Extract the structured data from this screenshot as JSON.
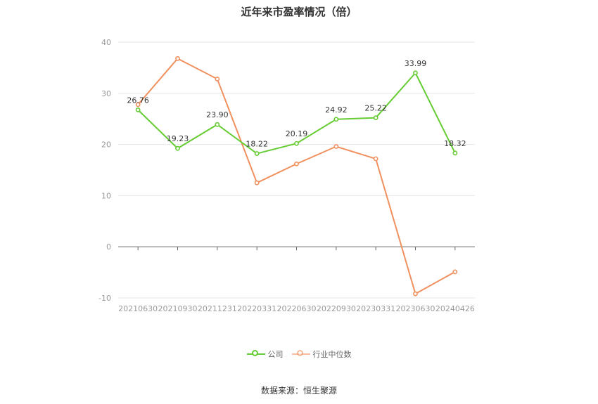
{
  "title": "近年来市盈率情况（倍）",
  "source": "数据来源：恒生聚源",
  "chart_data": {
    "type": "line",
    "categories": [
      "20210630",
      "20210930",
      "20211231",
      "20220331",
      "20220630",
      "20220930",
      "20230331",
      "20230630",
      "20240426"
    ],
    "ylim": [
      -10,
      40
    ],
    "yticks": [
      -10,
      0,
      10,
      20,
      30,
      40
    ],
    "grid": true,
    "legend_position": "bottom",
    "series": [
      {
        "name": "公司",
        "color": "#66cc33",
        "values": [
          26.76,
          19.23,
          23.9,
          18.22,
          20.19,
          24.92,
          25.22,
          33.99,
          18.32
        ],
        "labels": [
          "26.76",
          "19.23",
          "23.90",
          "18.22",
          "20.19",
          "24.92",
          "25.22",
          "33.99",
          "18.32"
        ]
      },
      {
        "name": "行业中位数",
        "color": "#f0905e",
        "values": [
          27.8,
          36.8,
          32.8,
          12.5,
          16.2,
          19.6,
          17.2,
          -9.2,
          -4.9
        ]
      }
    ]
  }
}
